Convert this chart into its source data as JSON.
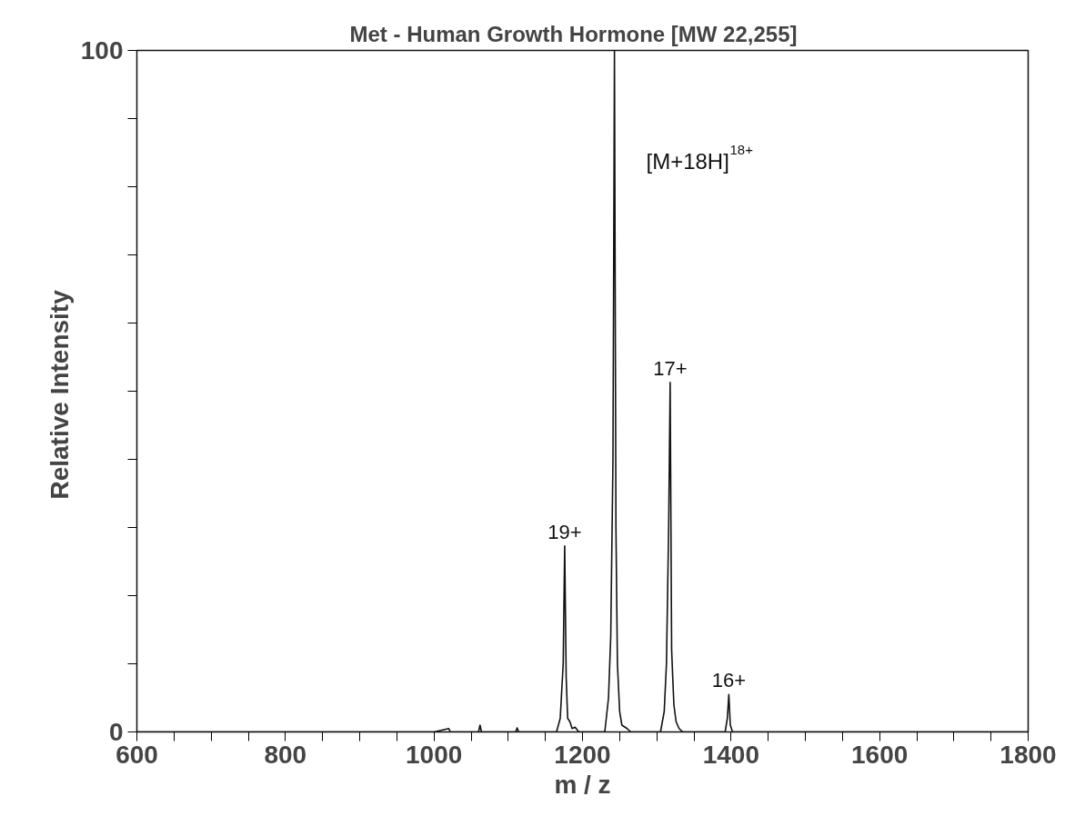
{
  "chart_data": {
    "type": "line",
    "title": "Met - Human Growth Hormone    [MW 22,255]",
    "xlabel": "m / z",
    "ylabel": "Relative  Intensity",
    "series": [
      {
        "color": "#111111",
        "x": [
          600,
          1000,
          1020,
          1022,
          1060,
          1062,
          1064,
          1110,
          1112,
          1114,
          1165,
          1170,
          1174,
          1176,
          1178,
          1180,
          1183,
          1186,
          1190,
          1195,
          1230,
          1235,
          1238,
          1241,
          1243,
          1245,
          1247,
          1250,
          1253,
          1260,
          1265,
          1305,
          1310,
          1313,
          1316,
          1318,
          1320,
          1323,
          1326,
          1330,
          1335,
          1392,
          1395,
          1397,
          1399,
          1402,
          1800
        ],
        "values": [
          0,
          0,
          0.5,
          0,
          0,
          1,
          0,
          0,
          0.6,
          0,
          0,
          2,
          10,
          27.3,
          8,
          2,
          1.5,
          0.5,
          0.7,
          0,
          0,
          5,
          14,
          40,
          100,
          30,
          10,
          3,
          1,
          0.5,
          0,
          0,
          3,
          10,
          30,
          51.3,
          12,
          4,
          1.5,
          0.5,
          0,
          0,
          2,
          5.5,
          1,
          0,
          0
        ]
      }
    ],
    "annotations": [
      {
        "text": "19+",
        "x": 1176,
        "y": 27.3
      },
      {
        "text": "17+",
        "x": 1318,
        "y": 51.3
      },
      {
        "text": "16+",
        "x": 1397,
        "y": 5.5
      },
      "[M+18H]$^{18+}$"
    ],
    "xlim": [
      600,
      1800
    ],
    "ylim": [
      0,
      100
    ],
    "xticks": [
      600,
      {
        "value": 650,
        "label": null
      },
      800,
      {
        "value": 700,
        "label": null
      },
      {
        "value": 750,
        "label": null
      },
      {
        "value": 850,
        "label": null
      },
      {
        "value": 900,
        "label": null
      },
      {
        "value": 950,
        "label": null
      },
      1000,
      {
        "value": 1050,
        "label": null
      },
      {
        "value": 1100,
        "label": null
      },
      {
        "value": 1150,
        "label": null
      },
      1200,
      {
        "value": 1250,
        "label": null
      },
      {
        "value": 1300,
        "label": null
      },
      {
        "value": 1350,
        "label": null
      },
      1400,
      {
        "value": 1450,
        "label": null
      },
      {
        "value": 1500,
        "label": null
      },
      {
        "value": 1550,
        "label": null
      },
      1600,
      {
        "value": 1650,
        "label": null
      },
      {
        "value": 1700,
        "label": null
      },
      {
        "value": 1750,
        "label": null
      },
      1800
    ],
    "yticks": [
      0,
      {
        "value": 10,
        "label": null
      },
      {
        "value": 20,
        "label": null
      },
      {
        "value": 30,
        "label": null
      },
      {
        "value": 40,
        "label": null
      },
      {
        "value": 50,
        "label": null
      },
      {
        "value": 60,
        "label": null
      },
      {
        "value": 70,
        "label": null
      },
      {
        "value": 80,
        "label": null
      },
      {
        "value": 90,
        "label": null
      },
      100
    ],
    "grid": false,
    "marker": "none",
    "line_style": "solid"
  }
}
